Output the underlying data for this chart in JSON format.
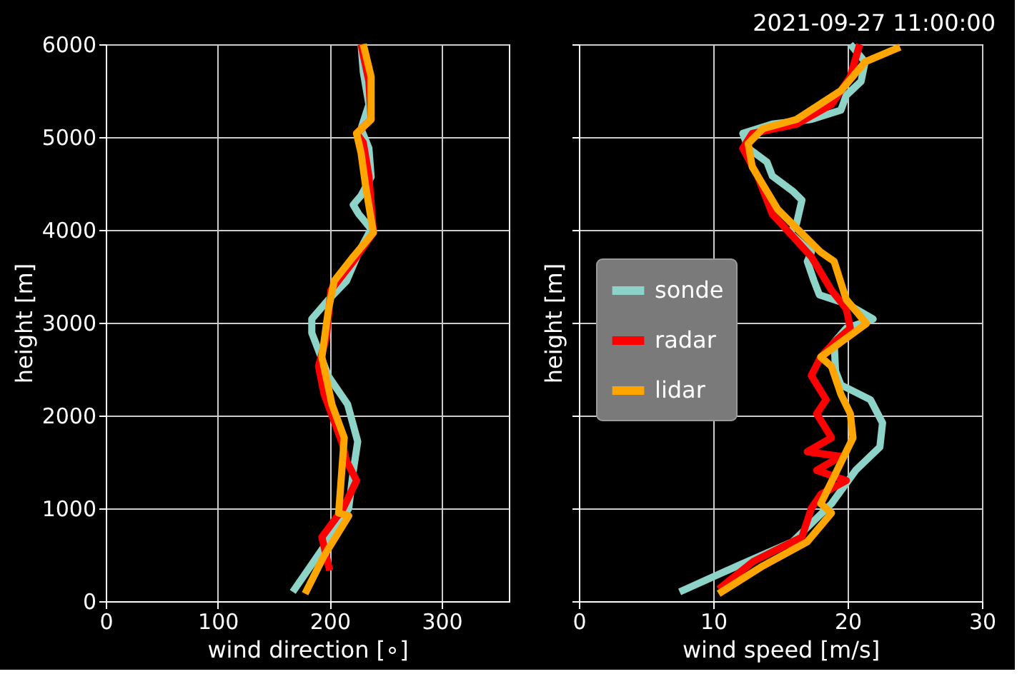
{
  "chart_data": [
    {
      "type": "line",
      "xlabel": "wind direction [∘]",
      "ylabel": "height [m]",
      "xlim": [
        0,
        360
      ],
      "xticks": [
        0,
        100,
        200,
        300
      ],
      "ylim": [
        0,
        6000
      ],
      "yticks": [
        0,
        1000,
        2000,
        3000,
        4000,
        5000,
        6000
      ],
      "grid": true,
      "legend": false,
      "line_style": "solid",
      "series": [
        {
          "color": "#8dd3c7",
          "x": [
            167,
            195,
            217,
            221,
            225,
            216,
            199,
            184,
            184,
            199,
            215,
            226,
            237,
            226,
            221,
            228,
            237,
            235,
            228,
            235,
            230,
            228
          ],
          "values": [
            100,
            590,
            1000,
            1400,
            1720,
            2120,
            2420,
            2890,
            3040,
            3250,
            3450,
            3760,
            4010,
            4170,
            4270,
            4370,
            4570,
            4880,
            5090,
            5350,
            5700,
            6000
          ]
        },
        {
          "color": "#ff0000",
          "x": [
            200,
            193,
            212,
            224,
            215,
            211,
            195,
            190,
            197,
            201,
            221,
            239,
            235,
            230,
            224,
            237,
            235,
            228
          ],
          "values": [
            330,
            690,
            1000,
            1300,
            1510,
            1710,
            2230,
            2530,
            2840,
            3350,
            3660,
            3970,
            4580,
            4940,
            5040,
            5190,
            5600,
            6000
          ]
        },
        {
          "color": "#ffa500",
          "x": [
            178,
            195,
            217,
            208,
            213,
            202,
            193,
            199,
            204,
            221,
            239,
            232,
            228,
            224,
            237,
            237,
            230
          ],
          "values": [
            80,
            490,
            920,
            950,
            1760,
            2120,
            2630,
            3150,
            3450,
            3710,
            3970,
            4480,
            4830,
            5040,
            5190,
            5650,
            6000
          ]
        }
      ]
    },
    {
      "type": "line",
      "title": "2021-09-27 11:00:00",
      "xlabel": "wind speed [m/s]",
      "ylabel": "height [m]",
      "xlim": [
        0,
        30
      ],
      "xticks": [
        0,
        10,
        20,
        30
      ],
      "ylim": [
        0,
        6000
      ],
      "yticks": [
        0,
        1000,
        2000,
        3000,
        4000,
        5000,
        6000
      ],
      "grid": true,
      "legend": "left",
      "tick_labels": "x",
      "line_style": "solid",
      "series": [
        {
          "name": "sonde",
          "color": "#8dd3c7",
          "x": [
            7.5,
            11.8,
            15.9,
            18.8,
            20.6,
            22.4,
            22.6,
            21.7,
            19.5,
            19.1,
            19.0,
            19.9,
            21.9,
            20.0,
            17.9,
            17.5,
            17.0,
            17.3,
            15.7,
            16.2,
            16.6,
            15.9,
            14.4,
            14.0,
            12.6,
            12.2,
            14.4,
            17.3,
            19.5,
            19.9,
            21.0,
            21.3,
            20.2
          ],
          "values": [
            100,
            380,
            640,
            1050,
            1410,
            1660,
            1920,
            2170,
            2330,
            2480,
            2790,
            2940,
            3040,
            3200,
            3300,
            3450,
            3660,
            3760,
            3970,
            4070,
            4320,
            4420,
            4580,
            4730,
            4880,
            5040,
            5140,
            5190,
            5290,
            5450,
            5600,
            5810,
            6000
          ]
        },
        {
          "name": "radar",
          "color": "#ff0000",
          "x": [
            10.4,
            13.0,
            16.6,
            17.3,
            18.0,
            19.9,
            17.7,
            19.5,
            17.0,
            18.8,
            17.7,
            18.4,
            17.3,
            18.0,
            19.0,
            20.2,
            19.9,
            18.8,
            17.3,
            14.4,
            13.3,
            12.2,
            12.9,
            16.2,
            18.8,
            20.2,
            20.9
          ],
          "values": [
            130,
            430,
            690,
            1000,
            1150,
            1300,
            1410,
            1560,
            1610,
            1760,
            2020,
            2170,
            2430,
            2630,
            2790,
            2940,
            3150,
            3350,
            3710,
            4170,
            4580,
            4880,
            5040,
            5140,
            5350,
            5650,
            6000
          ]
        },
        {
          "name": "lidar",
          "color": "#ffa500",
          "x": [
            10.4,
            13.7,
            17.0,
            18.8,
            18.0,
            20.4,
            20.2,
            19.5,
            18.8,
            18.0,
            19.5,
            21.4,
            19.9,
            19.0,
            18.0,
            14.8,
            12.9,
            12.6,
            13.7,
            16.2,
            19.5,
            21.3,
            23.9
          ],
          "values": [
            80,
            380,
            640,
            950,
            1050,
            1760,
            2020,
            2230,
            2530,
            2630,
            2790,
            2990,
            3250,
            3660,
            3760,
            4220,
            4680,
            4930,
            5090,
            5190,
            5500,
            5810,
            5970
          ]
        }
      ]
    }
  ]
}
